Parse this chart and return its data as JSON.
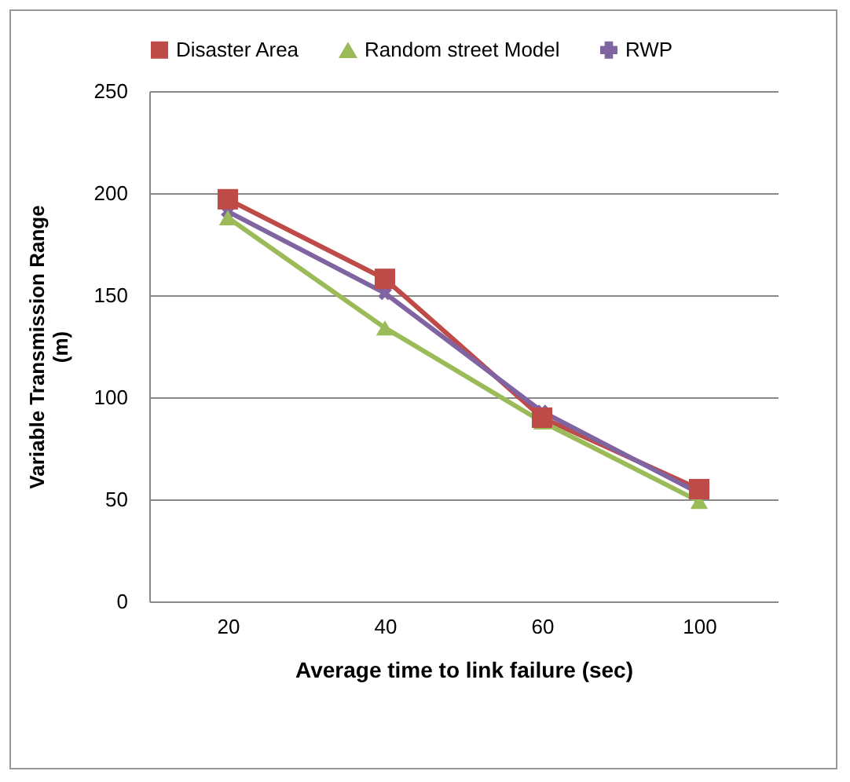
{
  "chart_data": {
    "type": "line",
    "xlabel": "Average time to link failure (sec)",
    "ylabel": "Variable Transmission  Range (m)",
    "categories": [
      "20",
      "40",
      "60",
      "100"
    ],
    "series": [
      {
        "name": "Disaster Area",
        "color": "#be4b48",
        "marker": "square",
        "values": [
          197,
          158,
          90,
          55
        ]
      },
      {
        "name": "Random street Model",
        "color": "#9bbb59",
        "marker": "triangle",
        "values": [
          188,
          134,
          88,
          49
        ]
      },
      {
        "name": "RWP",
        "color": "#8064a2",
        "marker": "cross",
        "values": [
          191,
          151,
          93,
          53
        ]
      }
    ],
    "ylim": [
      0,
      250
    ],
    "yticks": [
      0,
      50,
      100,
      150,
      200,
      250
    ],
    "grid": "y",
    "legend": "top"
  }
}
